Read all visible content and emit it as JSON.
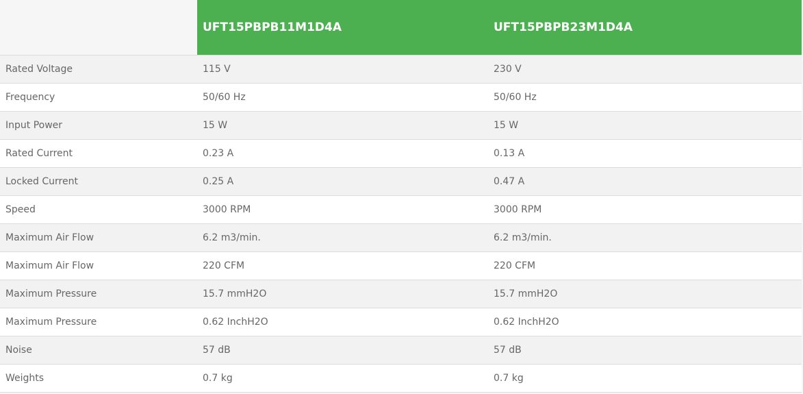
{
  "colors": {
    "header_bg": "#4caf50",
    "header_text": "#ffffff",
    "odd_row": "#f2f2f2",
    "even_row": "#ffffff"
  },
  "headers": [
    "",
    "UFT15PBPB11M1D4A",
    "UFT15PBPB23M1D4A"
  ],
  "rows": [
    [
      "Rated Voltage",
      "115 V",
      "230 V"
    ],
    [
      "Frequency",
      "50/60 Hz",
      "50/60 Hz"
    ],
    [
      "Input Power",
      "15 W",
      "15 W"
    ],
    [
      "Rated Current",
      "0.23 A",
      "0.13 A"
    ],
    [
      "Locked Current",
      "0.25 A",
      "0.47 A"
    ],
    [
      "Speed",
      "3000 RPM",
      "3000 RPM"
    ],
    [
      "Maximum Air Flow",
      "6.2 m3/min.",
      "6.2 m3/min."
    ],
    [
      "Maximum Air Flow",
      "220 CFM",
      "220 CFM"
    ],
    [
      "Maximum Pressure",
      "15.7 mmH2O",
      "15.7 mmH2O"
    ],
    [
      "Maximum Pressure",
      "0.62 InchH2O",
      "0.62 InchH2O"
    ],
    [
      "Noise",
      "57 dB",
      "57 dB"
    ],
    [
      "Weights",
      "0.7 kg",
      "0.7 kg"
    ]
  ]
}
